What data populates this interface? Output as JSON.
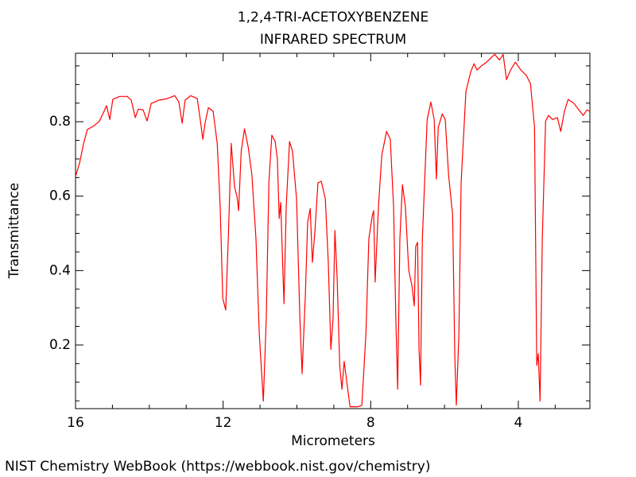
{
  "chart_data": {
    "type": "line",
    "title": "1,2,4-TRI-ACETOXYBENZENE",
    "subtitle": "INFRARED SPECTRUM",
    "x_label": "Micrometers",
    "y_label": "Transmittance",
    "source": "NIST Chemistry WebBook (https://webbook.nist.gov/chemistry)",
    "color": "#ff0000",
    "xlim": [
      16,
      2.06
    ],
    "ylim": [
      0.029,
      0.984
    ],
    "xticks": [
      16,
      12,
      8,
      4
    ],
    "yticks": [
      0.2,
      0.4,
      0.6,
      0.8
    ],
    "x_minor_ticks": [
      15,
      14,
      13,
      11,
      10,
      9,
      7,
      6,
      5,
      3
    ],
    "y_minor_ticks": [
      0.05,
      0.1,
      0.15,
      0.25,
      0.3,
      0.35,
      0.45,
      0.5,
      0.55,
      0.65,
      0.7,
      0.75,
      0.85,
      0.9,
      0.95
    ],
    "x": [
      16.0,
      15.89,
      15.78,
      15.68,
      15.5,
      15.35,
      15.25,
      15.16,
      15.07,
      14.99,
      14.81,
      14.6,
      14.49,
      14.38,
      14.3,
      14.17,
      14.06,
      13.95,
      13.74,
      13.52,
      13.31,
      13.2,
      13.11,
      13.03,
      12.88,
      12.7,
      12.62,
      12.55,
      12.49,
      12.4,
      12.27,
      12.16,
      12.08,
      12.01,
      11.93,
      11.86,
      11.78,
      11.69,
      11.62,
      11.58,
      11.51,
      11.42,
      11.32,
      11.22,
      11.11,
      11.02,
      10.91,
      10.83,
      10.76,
      10.68,
      10.59,
      10.53,
      10.48,
      10.44,
      10.35,
      10.29,
      10.2,
      10.12,
      10.01,
      9.92,
      9.86,
      9.77,
      9.71,
      9.64,
      9.58,
      9.51,
      9.43,
      9.34,
      9.23,
      9.15,
      9.08,
      9.02,
      8.97,
      8.91,
      8.84,
      8.78,
      8.72,
      8.65,
      8.56,
      8.35,
      8.24,
      8.13,
      8.05,
      7.96,
      7.92,
      7.88,
      7.79,
      7.7,
      7.57,
      7.47,
      7.38,
      7.32,
      7.27,
      7.21,
      7.14,
      7.06,
      6.97,
      6.88,
      6.82,
      6.78,
      6.73,
      6.69,
      6.65,
      6.6,
      6.54,
      6.47,
      6.37,
      6.28,
      6.22,
      6.17,
      6.06,
      5.98,
      5.89,
      5.78,
      5.72,
      5.68,
      5.61,
      5.55,
      5.42,
      5.29,
      5.2,
      5.12,
      4.99,
      4.86,
      4.73,
      4.64,
      4.51,
      4.41,
      4.32,
      4.21,
      4.08,
      3.93,
      3.78,
      3.67,
      3.56,
      3.5,
      3.46,
      3.41,
      3.35,
      3.26,
      3.18,
      3.07,
      2.94,
      2.85,
      2.75,
      2.65,
      2.49,
      2.36,
      2.24,
      2.14,
      2.06
    ],
    "values": [
      0.653,
      0.689,
      0.742,
      0.779,
      0.789,
      0.802,
      0.823,
      0.843,
      0.806,
      0.86,
      0.868,
      0.868,
      0.858,
      0.811,
      0.834,
      0.832,
      0.802,
      0.849,
      0.858,
      0.862,
      0.87,
      0.853,
      0.796,
      0.858,
      0.87,
      0.862,
      0.806,
      0.753,
      0.796,
      0.838,
      0.828,
      0.742,
      0.572,
      0.326,
      0.294,
      0.486,
      0.742,
      0.625,
      0.597,
      0.561,
      0.721,
      0.781,
      0.732,
      0.657,
      0.486,
      0.23,
      0.049,
      0.273,
      0.636,
      0.764,
      0.747,
      0.7,
      0.54,
      0.583,
      0.311,
      0.572,
      0.747,
      0.721,
      0.593,
      0.273,
      0.123,
      0.337,
      0.529,
      0.567,
      0.422,
      0.508,
      0.636,
      0.64,
      0.593,
      0.422,
      0.188,
      0.273,
      0.508,
      0.38,
      0.145,
      0.081,
      0.156,
      0.102,
      0.034,
      0.034,
      0.038,
      0.23,
      0.486,
      0.546,
      0.561,
      0.369,
      0.572,
      0.71,
      0.774,
      0.753,
      0.572,
      0.273,
      0.081,
      0.486,
      0.631,
      0.572,
      0.401,
      0.358,
      0.305,
      0.465,
      0.476,
      0.188,
      0.092,
      0.486,
      0.636,
      0.806,
      0.853,
      0.806,
      0.646,
      0.785,
      0.821,
      0.806,
      0.657,
      0.55,
      0.166,
      0.038,
      0.23,
      0.636,
      0.881,
      0.934,
      0.956,
      0.939,
      0.951,
      0.96,
      0.973,
      0.981,
      0.966,
      0.981,
      0.913,
      0.939,
      0.96,
      0.939,
      0.924,
      0.902,
      0.785,
      0.145,
      0.177,
      0.049,
      0.486,
      0.802,
      0.817,
      0.806,
      0.811,
      0.774,
      0.828,
      0.86,
      0.849,
      0.832,
      0.817,
      0.832,
      0.828
    ]
  }
}
